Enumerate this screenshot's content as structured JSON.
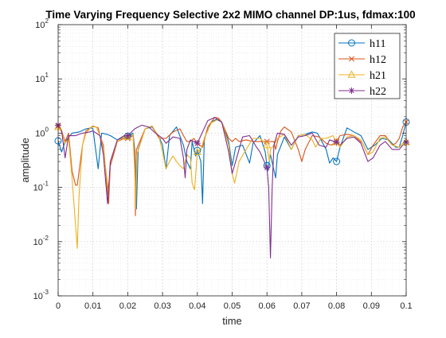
{
  "chart_data": {
    "type": "line",
    "title": "Time Varying Frequency Selective 2x2 MIMO channel DP:1us, fdmax:100",
    "xlabel": "time",
    "ylabel": "amplitude",
    "xlim": [
      0,
      0.1
    ],
    "ylim": [
      0.001,
      100
    ],
    "yscale": "log",
    "grid": true,
    "minor_grid": true,
    "legend_position": "top-right",
    "x_ticks": [
      0,
      0.01,
      0.02,
      0.03,
      0.04,
      0.05,
      0.06,
      0.07,
      0.08,
      0.09,
      0.1
    ],
    "x_tick_labels": [
      "0",
      "0.01",
      "0.02",
      "0.03",
      "0.04",
      "0.05",
      "0.06",
      "0.07",
      "0.08",
      "0.09",
      "0.1"
    ],
    "y_ticks": [
      0.001,
      0.01,
      0.1,
      1,
      10,
      100
    ],
    "y_tick_labels": [
      {
        "base": "10",
        "exp": "-3"
      },
      {
        "base": "10",
        "exp": "-2"
      },
      {
        "base": "10",
        "exp": "-1"
      },
      {
        "base": "10",
        "exp": "0"
      },
      {
        "base": "10",
        "exp": "1"
      },
      {
        "base": "10",
        "exp": "2"
      }
    ],
    "series": [
      {
        "name": "h11",
        "color": "#0072BD",
        "marker": "circle",
        "markers_at": [
          0,
          0.02,
          0.04,
          0.06,
          0.08,
          0.1
        ],
        "points": [
          [
            0,
            0.72
          ],
          [
            0.001,
            0.45
          ],
          [
            0.002,
            0.7
          ],
          [
            0.004,
            1.0
          ],
          [
            0.006,
            1.05
          ],
          [
            0.008,
            1.2
          ],
          [
            0.0095,
            1.25
          ],
          [
            0.01,
            1.2
          ],
          [
            0.0115,
            0.22
          ],
          [
            0.0125,
            1.0
          ],
          [
            0.014,
            0.95
          ],
          [
            0.015,
            0.9
          ],
          [
            0.017,
            0.75
          ],
          [
            0.019,
            0.85
          ],
          [
            0.02,
            0.88
          ],
          [
            0.0215,
            1.0
          ],
          [
            0.022,
            0.5
          ],
          [
            0.0225,
            0.04
          ],
          [
            0.023,
            0.5
          ],
          [
            0.025,
            1.2
          ],
          [
            0.027,
            1.3
          ],
          [
            0.029,
            0.85
          ],
          [
            0.03,
            0.6
          ],
          [
            0.031,
            0.22
          ],
          [
            0.032,
            0.9
          ],
          [
            0.034,
            1.3
          ],
          [
            0.036,
            0.6
          ],
          [
            0.037,
            0.3
          ],
          [
            0.038,
            0.22
          ],
          [
            0.0385,
            0.7
          ],
          [
            0.0395,
            0.38
          ],
          [
            0.04,
            0.48
          ],
          [
            0.041,
            0.3
          ],
          [
            0.0415,
            0.05
          ],
          [
            0.042,
            0.8
          ],
          [
            0.044,
            1.6
          ],
          [
            0.0455,
            1.8
          ],
          [
            0.047,
            1.6
          ],
          [
            0.049,
            0.7
          ],
          [
            0.05,
            0.25
          ],
          [
            0.051,
            0.55
          ],
          [
            0.053,
            0.6
          ],
          [
            0.055,
            0.28
          ],
          [
            0.056,
            0.65
          ],
          [
            0.058,
            0.9
          ],
          [
            0.0595,
            0.45
          ],
          [
            0.0602,
            0.2
          ],
          [
            0.061,
            0.4
          ],
          [
            0.0625,
            0.15
          ],
          [
            0.063,
            0.4
          ],
          [
            0.065,
            0.85
          ],
          [
            0.067,
            0.5
          ],
          [
            0.069,
            0.9
          ],
          [
            0.071,
            0.95
          ],
          [
            0.073,
            1.05
          ],
          [
            0.0745,
            1.0
          ],
          [
            0.077,
            0.5
          ],
          [
            0.078,
            0.28
          ],
          [
            0.079,
            0.35
          ],
          [
            0.08,
            0.3
          ],
          [
            0.081,
            0.55
          ],
          [
            0.083,
            1.25
          ],
          [
            0.085,
            1.05
          ],
          [
            0.087,
            0.9
          ],
          [
            0.089,
            0.5
          ],
          [
            0.091,
            0.6
          ],
          [
            0.093,
            0.8
          ],
          [
            0.095,
            0.75
          ],
          [
            0.097,
            0.55
          ],
          [
            0.098,
            0.55
          ],
          [
            0.099,
            0.9
          ],
          [
            0.1,
            1.6
          ]
        ]
      },
      {
        "name": "h12",
        "color": "#D95319",
        "marker": "x",
        "markers_at": [
          0,
          0.02,
          0.04,
          0.06,
          0.08,
          0.1
        ],
        "points": [
          [
            0,
            1.35
          ],
          [
            0.001,
            1.1
          ],
          [
            0.002,
            0.7
          ],
          [
            0.003,
            1.0
          ],
          [
            0.004,
            0.2
          ],
          [
            0.005,
            0.11
          ],
          [
            0.0055,
            0.11
          ],
          [
            0.007,
            0.6
          ],
          [
            0.008,
            1.1
          ],
          [
            0.01,
            1.35
          ],
          [
            0.0115,
            1.25
          ],
          [
            0.012,
            0.9
          ],
          [
            0.013,
            0.6
          ],
          [
            0.0145,
            0.05
          ],
          [
            0.015,
            0.25
          ],
          [
            0.017,
            0.7
          ],
          [
            0.019,
            0.8
          ],
          [
            0.02,
            0.8
          ],
          [
            0.0215,
            0.9
          ],
          [
            0.022,
            0.45
          ],
          [
            0.0222,
            0.03
          ],
          [
            0.0225,
            0.5
          ],
          [
            0.025,
            1.2
          ],
          [
            0.027,
            1.35
          ],
          [
            0.029,
            0.8
          ],
          [
            0.031,
            0.8
          ],
          [
            0.033,
            1.05
          ],
          [
            0.035,
            1.2
          ],
          [
            0.036,
            0.9
          ],
          [
            0.037,
            0.7
          ],
          [
            0.038,
            0.7
          ],
          [
            0.039,
            0.8
          ],
          [
            0.04,
            0.65
          ],
          [
            0.0415,
            0.55
          ],
          [
            0.043,
            1.3
          ],
          [
            0.045,
            1.95
          ],
          [
            0.046,
            1.9
          ],
          [
            0.047,
            1.6
          ],
          [
            0.049,
            0.8
          ],
          [
            0.05,
            0.7
          ],
          [
            0.051,
            0.8
          ],
          [
            0.052,
            0.7
          ],
          [
            0.054,
            0.75
          ],
          [
            0.056,
            0.7
          ],
          [
            0.058,
            0.7
          ],
          [
            0.06,
            0.7
          ],
          [
            0.062,
            0.7
          ],
          [
            0.0625,
            0.5
          ],
          [
            0.063,
            0.7
          ],
          [
            0.064,
            1.1
          ],
          [
            0.065,
            1.3
          ],
          [
            0.067,
            1.05
          ],
          [
            0.069,
            0.5
          ],
          [
            0.07,
            0.3
          ],
          [
            0.071,
            0.5
          ],
          [
            0.073,
            0.9
          ],
          [
            0.075,
            0.85
          ],
          [
            0.077,
            0.65
          ],
          [
            0.0785,
            0.6
          ],
          [
            0.08,
            0.7
          ],
          [
            0.081,
            0.9
          ],
          [
            0.083,
            0.95
          ],
          [
            0.085,
            0.9
          ],
          [
            0.0875,
            0.65
          ],
          [
            0.089,
            0.4
          ],
          [
            0.0905,
            0.6
          ],
          [
            0.0925,
            0.9
          ],
          [
            0.094,
            0.9
          ],
          [
            0.096,
            0.6
          ],
          [
            0.097,
            0.65
          ],
          [
            0.098,
            0.8
          ],
          [
            0.099,
            1.3
          ],
          [
            0.1,
            1.6
          ]
        ]
      },
      {
        "name": "h21",
        "color": "#EDB120",
        "marker": "triangle",
        "markers_at": [
          0,
          0.02,
          0.04,
          0.06,
          0.08,
          0.1
        ],
        "points": [
          [
            0,
            1.3
          ],
          [
            0.001,
            1.05
          ],
          [
            0.002,
            0.65
          ],
          [
            0.003,
            0.8
          ],
          [
            0.004,
            0.15
          ],
          [
            0.0048,
            0.03
          ],
          [
            0.0055,
            0.0075
          ],
          [
            0.006,
            0.07
          ],
          [
            0.007,
            0.6
          ],
          [
            0.008,
            1.0
          ],
          [
            0.0095,
            1.3
          ],
          [
            0.011,
            1.3
          ],
          [
            0.012,
            0.9
          ],
          [
            0.013,
            0.5
          ],
          [
            0.0145,
            0.08
          ],
          [
            0.015,
            0.3
          ],
          [
            0.017,
            0.7
          ],
          [
            0.019,
            0.85
          ],
          [
            0.02,
            0.85
          ],
          [
            0.0215,
            0.95
          ],
          [
            0.022,
            0.2
          ],
          [
            0.0223,
            0.04
          ],
          [
            0.0226,
            0.4
          ],
          [
            0.025,
            1.2
          ],
          [
            0.027,
            1.35
          ],
          [
            0.029,
            0.85
          ],
          [
            0.03,
            0.45
          ],
          [
            0.031,
            0.22
          ],
          [
            0.032,
            0.3
          ],
          [
            0.033,
            0.38
          ],
          [
            0.034,
            0.3
          ],
          [
            0.035,
            0.25
          ],
          [
            0.036,
            0.22
          ],
          [
            0.037,
            0.4
          ],
          [
            0.038,
            0.35
          ],
          [
            0.0385,
            0.12
          ],
          [
            0.0392,
            0.09
          ],
          [
            0.04,
            0.45
          ],
          [
            0.041,
            0.5
          ],
          [
            0.042,
            0.8
          ],
          [
            0.044,
            1.55
          ],
          [
            0.046,
            1.8
          ],
          [
            0.047,
            1.6
          ],
          [
            0.049,
            0.6
          ],
          [
            0.05,
            0.18
          ],
          [
            0.0507,
            0.12
          ],
          [
            0.052,
            0.3
          ],
          [
            0.054,
            0.5
          ],
          [
            0.056,
            0.8
          ],
          [
            0.058,
            0.8
          ],
          [
            0.06,
            0.6
          ],
          [
            0.0607,
            0.3
          ],
          [
            0.061,
            0.5
          ],
          [
            0.062,
            0.6
          ],
          [
            0.063,
            0.8
          ],
          [
            0.065,
            0.95
          ],
          [
            0.067,
            0.5
          ],
          [
            0.069,
            0.9
          ],
          [
            0.071,
            0.95
          ],
          [
            0.073,
            0.75
          ],
          [
            0.074,
            0.55
          ],
          [
            0.0755,
            0.8
          ],
          [
            0.077,
            0.8
          ],
          [
            0.079,
            0.9
          ],
          [
            0.08,
            0.68
          ],
          [
            0.081,
            0.55
          ],
          [
            0.083,
            0.85
          ],
          [
            0.085,
            0.9
          ],
          [
            0.087,
            0.75
          ],
          [
            0.089,
            0.4
          ],
          [
            0.0905,
            0.45
          ],
          [
            0.0925,
            0.8
          ],
          [
            0.094,
            0.85
          ],
          [
            0.096,
            0.6
          ],
          [
            0.098,
            0.55
          ],
          [
            0.0995,
            0.7
          ],
          [
            0.1,
            0.68
          ]
        ]
      },
      {
        "name": "h22",
        "color": "#7E2F8E",
        "marker": "star",
        "markers_at": [
          0,
          0.02,
          0.04,
          0.06,
          0.08,
          0.1
        ],
        "points": [
          [
            0,
            1.4
          ],
          [
            0.001,
            1.1
          ],
          [
            0.002,
            0.35
          ],
          [
            0.003,
            0.9
          ],
          [
            0.005,
            0.9
          ],
          [
            0.007,
            1.0
          ],
          [
            0.009,
            1.05
          ],
          [
            0.01,
            1.1
          ],
          [
            0.012,
            0.9
          ],
          [
            0.013,
            0.4
          ],
          [
            0.0142,
            0.05
          ],
          [
            0.015,
            0.3
          ],
          [
            0.017,
            0.75
          ],
          [
            0.019,
            0.9
          ],
          [
            0.02,
            0.9
          ],
          [
            0.022,
            1.2
          ],
          [
            0.024,
            1.4
          ],
          [
            0.026,
            1.3
          ],
          [
            0.028,
            1.0
          ],
          [
            0.03,
            0.8
          ],
          [
            0.031,
            0.65
          ],
          [
            0.033,
            0.85
          ],
          [
            0.035,
            0.8
          ],
          [
            0.036,
            0.35
          ],
          [
            0.0365,
            0.15
          ],
          [
            0.037,
            0.5
          ],
          [
            0.038,
            0.75
          ],
          [
            0.04,
            0.65
          ],
          [
            0.041,
            0.9
          ],
          [
            0.043,
            1.7
          ],
          [
            0.045,
            1.95
          ],
          [
            0.047,
            1.6
          ],
          [
            0.049,
            0.45
          ],
          [
            0.05,
            0.18
          ],
          [
            0.051,
            0.3
          ],
          [
            0.053,
            0.85
          ],
          [
            0.055,
            0.9
          ],
          [
            0.057,
            0.55
          ],
          [
            0.058,
            0.45
          ],
          [
            0.06,
            0.23
          ],
          [
            0.0605,
            0.1
          ],
          [
            0.061,
            0.005
          ],
          [
            0.0615,
            0.1
          ],
          [
            0.062,
            0.6
          ],
          [
            0.063,
            1.0
          ],
          [
            0.065,
            0.95
          ],
          [
            0.067,
            0.6
          ],
          [
            0.069,
            0.85
          ],
          [
            0.071,
            0.9
          ],
          [
            0.073,
            1.0
          ],
          [
            0.075,
            0.6
          ],
          [
            0.077,
            0.55
          ],
          [
            0.078,
            0.75
          ],
          [
            0.08,
            0.68
          ],
          [
            0.081,
            0.6
          ],
          [
            0.083,
            0.8
          ],
          [
            0.085,
            0.85
          ],
          [
            0.087,
            0.65
          ],
          [
            0.089,
            0.3
          ],
          [
            0.0905,
            0.35
          ],
          [
            0.0925,
            0.6
          ],
          [
            0.094,
            0.7
          ],
          [
            0.096,
            0.5
          ],
          [
            0.098,
            0.5
          ],
          [
            0.099,
            0.6
          ],
          [
            0.1,
            0.68
          ]
        ]
      }
    ]
  }
}
